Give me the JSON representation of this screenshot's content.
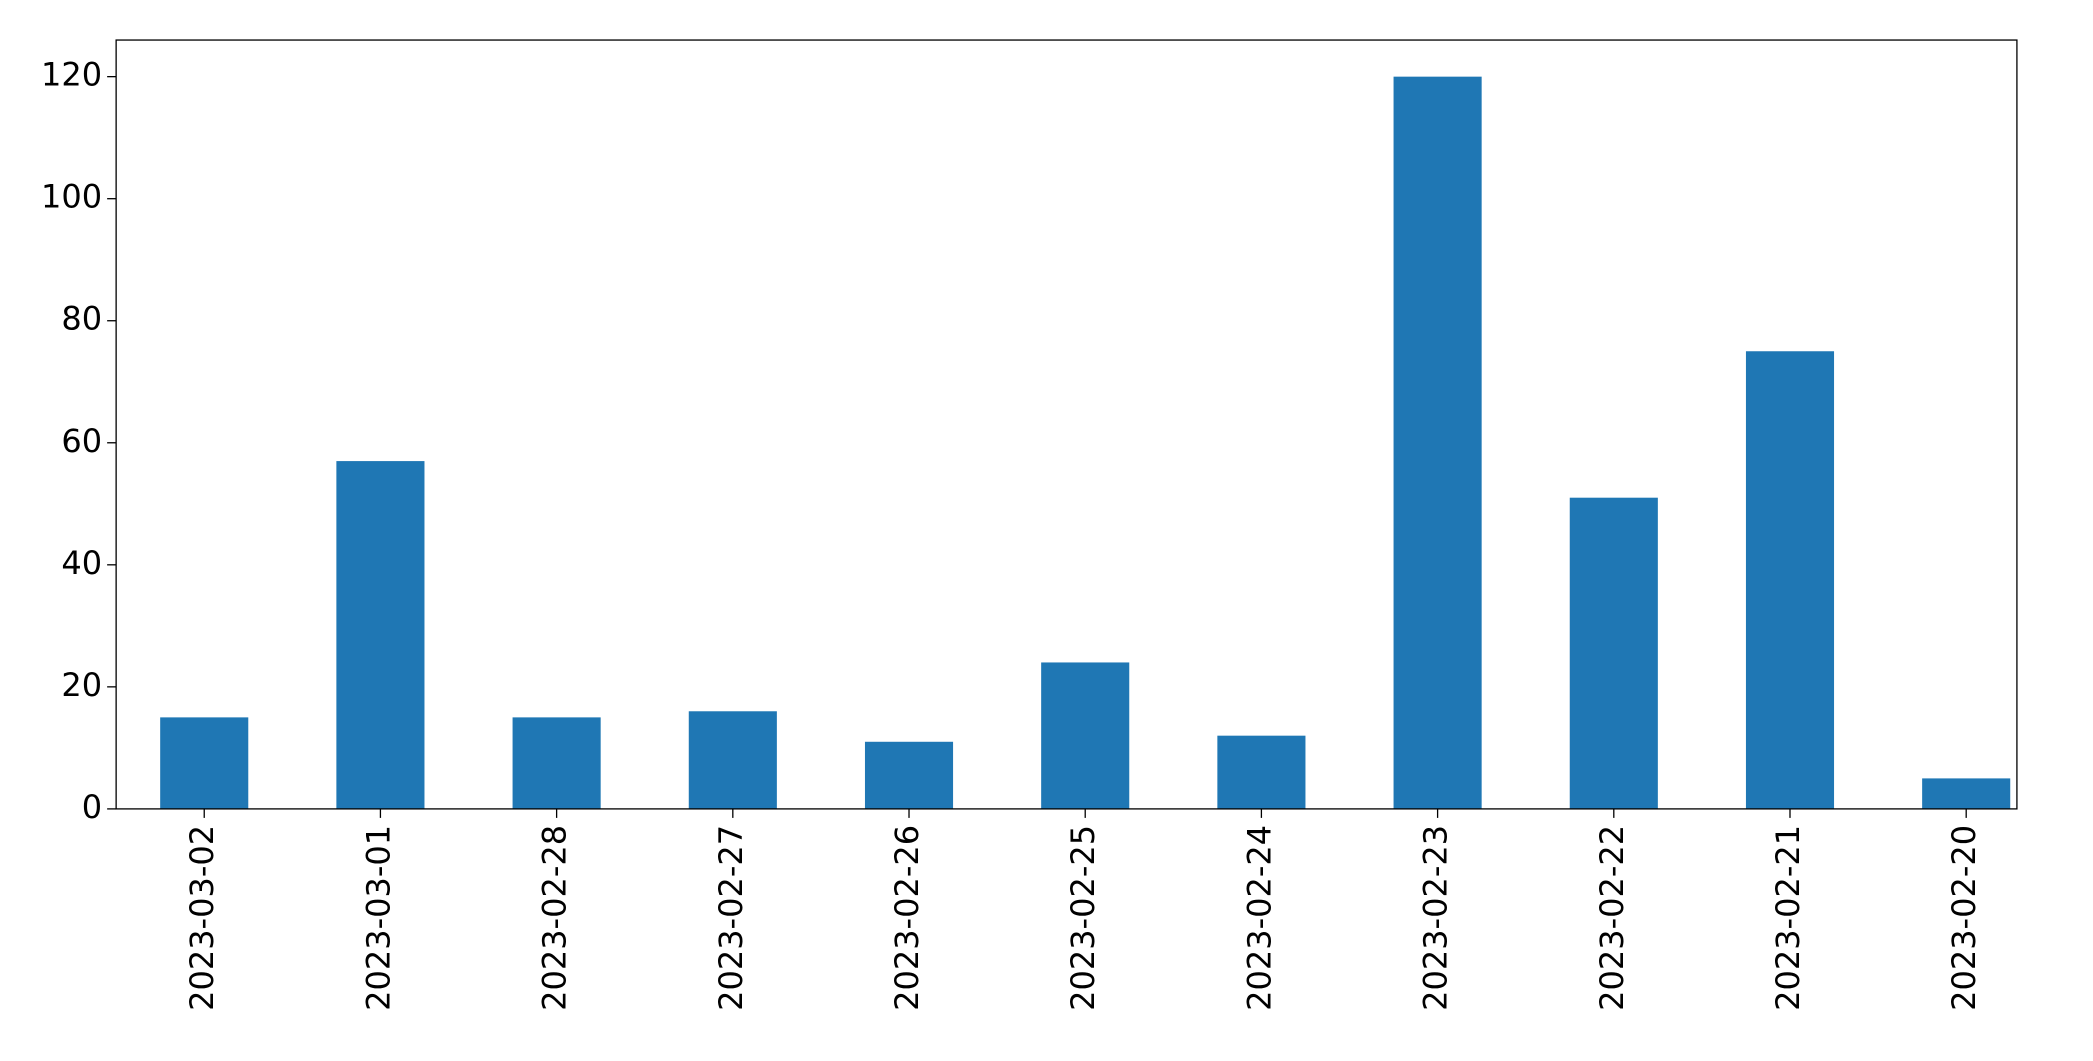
{
  "chart_data": {
    "type": "bar",
    "categories": [
      "2023-03-02",
      "2023-03-01",
      "2023-02-28",
      "2023-02-27",
      "2023-02-26",
      "2023-02-25",
      "2023-02-24",
      "2023-02-23",
      "2023-02-22",
      "2023-02-21",
      "2023-02-20"
    ],
    "values": [
      15,
      57,
      15,
      16,
      11,
      24,
      12,
      120,
      51,
      75,
      5
    ],
    "color": "#1f77b4",
    "ylim": [
      0,
      126
    ],
    "yticks": [
      0,
      20,
      40,
      60,
      80,
      100,
      120
    ],
    "grid": false
  }
}
